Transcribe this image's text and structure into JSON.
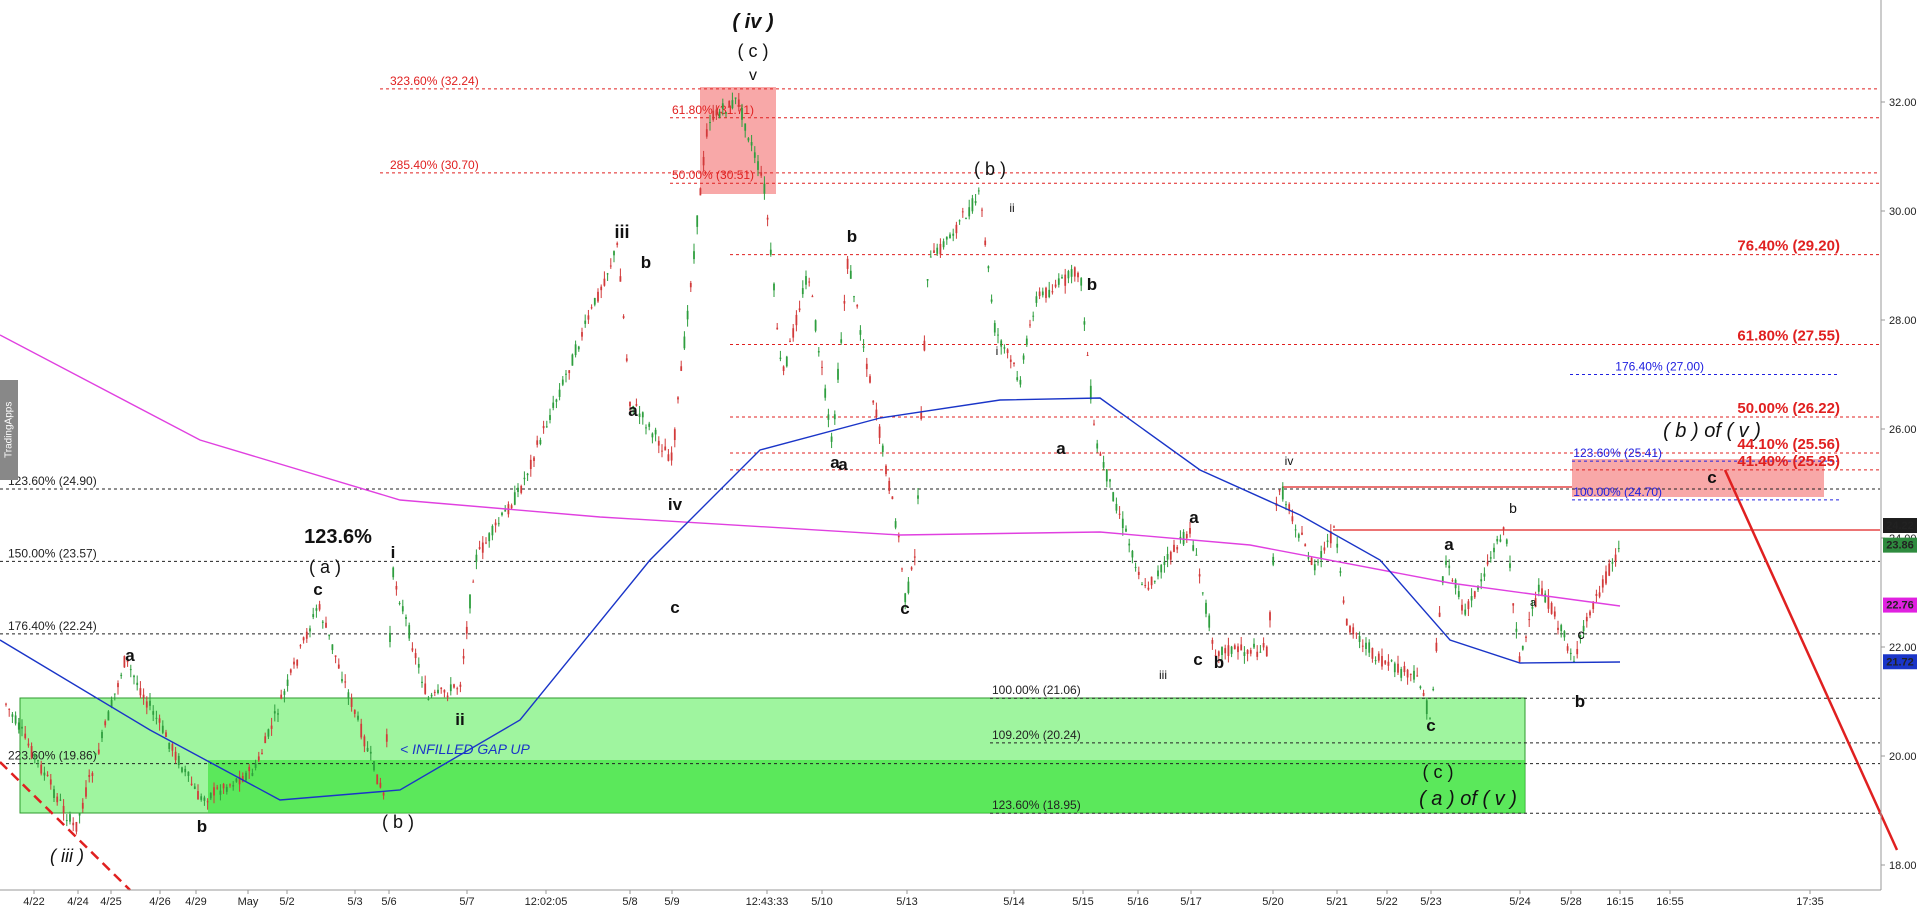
{
  "chart_data": {
    "type": "candlestick",
    "price_axis": {
      "ticks": [
        32.0,
        30.0,
        28.0,
        26.0,
        24.0,
        22.0,
        20.0,
        18.0
      ]
    },
    "time_axis": {
      "ticks": [
        "4/22",
        "4/24",
        "4/25",
        "4/26",
        "4/29",
        "May",
        "5/2",
        "5/3",
        "5/6",
        "5/7",
        "12:02:05",
        "5/8",
        "5/9",
        "12:43:33",
        "5/10",
        "5/13",
        "5/14",
        "5/15",
        "5/16",
        "5/17",
        "5/20",
        "5/21",
        "5/22",
        "5/23",
        "5/24",
        "5/28",
        "16:15",
        "16:55",
        "17:35"
      ]
    },
    "price_badges": [
      {
        "text": "24.22",
        "color": "#1e1e1e"
      },
      {
        "text": "23.86",
        "color": "#2e8b3e"
      },
      {
        "text": "22.76",
        "color": "#e020e0"
      },
      {
        "text": "21.72",
        "color": "#1a35c8"
      }
    ],
    "fib_levels": [
      {
        "label": "323.60% (32.24)",
        "price": 32.24,
        "color": "#e02020"
      },
      {
        "label": "61.80% (31.71)",
        "price": 31.71,
        "color": "#e02020"
      },
      {
        "label": "285.40% (30.70)",
        "price": 30.7,
        "color": "#e02020"
      },
      {
        "label": "50.00% (30.51)",
        "price": 30.51,
        "color": "#e02020"
      },
      {
        "label": "76.40% (29.20)",
        "price": 29.2,
        "color": "#e02020"
      },
      {
        "label": "61.80% (27.55)",
        "price": 27.55,
        "color": "#e02020"
      },
      {
        "label": "176.40% (27.00)",
        "price": 27.0,
        "color": "#2020e0"
      },
      {
        "label": "50.00% (26.22)",
        "price": 26.22,
        "color": "#e02020"
      },
      {
        "label": "44.10% (25.56)",
        "price": 25.56,
        "color": "#e02020"
      },
      {
        "label": "123.60% (25.41)",
        "price": 25.41,
        "color": "#2020e0"
      },
      {
        "label": "41.40% (25.25)",
        "price": 25.25,
        "color": "#e02020"
      },
      {
        "label": "123.60% (24.90)",
        "price": 24.9,
        "color": "#222"
      },
      {
        "label": "100.00% (24.70)",
        "price": 24.7,
        "color": "#2020e0"
      },
      {
        "label": "150.00% (23.57)",
        "price": 23.57,
        "color": "#222"
      },
      {
        "label": "176.40% (22.24)",
        "price": 22.24,
        "color": "#222"
      },
      {
        "label": "100.00% (21.06)",
        "price": 21.06,
        "color": "#222"
      },
      {
        "label": "109.20% (20.24)",
        "price": 20.24,
        "color": "#222"
      },
      {
        "label": "223.60% (19.86)",
        "price": 19.86,
        "color": "#222"
      },
      {
        "label": "123.60% (18.95)",
        "price": 18.95,
        "color": "#222"
      }
    ],
    "wave_labels": [
      {
        "text": "( iv )",
        "color": "#1a35c8"
      },
      {
        "text": "( c )",
        "color": "#111"
      },
      {
        "text": "v",
        "color": "#111"
      },
      {
        "text": "( b )",
        "color": "#111"
      },
      {
        "text": "ii",
        "color": "#111"
      },
      {
        "text": "iii",
        "color": "#111"
      },
      {
        "text": "b",
        "color": "#111"
      },
      {
        "text": "a",
        "color": "#111"
      },
      {
        "text": "c",
        "color": "#111"
      },
      {
        "text": "iv",
        "color": "#111"
      },
      {
        "text": "123.6%",
        "color": "#111"
      },
      {
        "text": "( a )",
        "color": "#111"
      },
      {
        "text": "i",
        "color": "#111"
      },
      {
        "text": "ii",
        "color": "#111"
      },
      {
        "text": "( b )",
        "color": "#111"
      },
      {
        "text": "( iii )",
        "color": "#1a35c8"
      },
      {
        "text": "( b ) of ( v )",
        "color": "#1a35c8"
      },
      {
        "text": "( a ) of ( v )",
        "color": "#1a35c8"
      },
      {
        "text": "( c )",
        "color": "#111"
      },
      {
        "text": "c",
        "color": "#111"
      },
      {
        "text": "b",
        "color": "#e02020"
      },
      {
        "text": "c",
        "color": "#e02020"
      },
      {
        "text": "a",
        "color": "#e02020"
      },
      {
        "text": "iii",
        "color": "#111"
      },
      {
        "text": "iv",
        "color": "#111"
      },
      {
        "text": "i",
        "color": "#111"
      }
    ],
    "annotation": "< INFILLED GAP UP",
    "watermark": "TradingApps"
  }
}
